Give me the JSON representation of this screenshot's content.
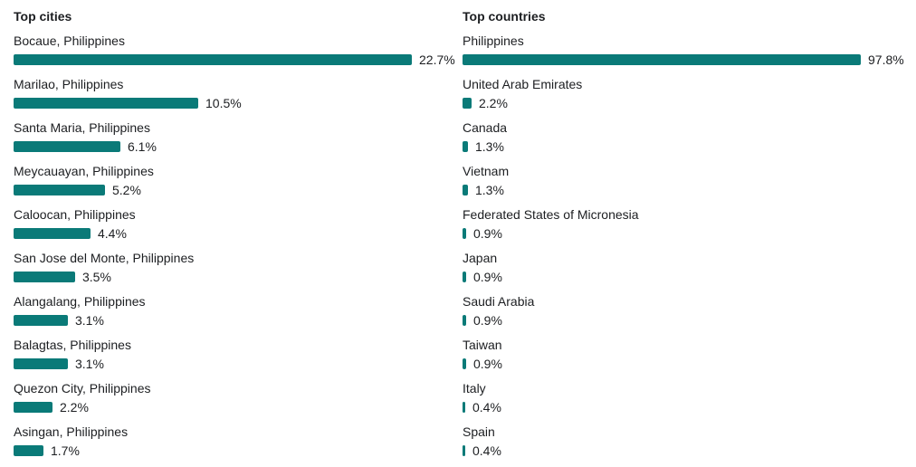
{
  "colors": {
    "bar": "#0a7a78",
    "text": "#1c1e21"
  },
  "chart_data": [
    {
      "type": "bar",
      "orientation": "horizontal",
      "title": "Top cities",
      "unit": "%",
      "categories": [
        "Bocaue, Philippines",
        "Marilao, Philippines",
        "Santa Maria, Philippines",
        "Meycauayan, Philippines",
        "Caloocan, Philippines",
        "San Jose del Monte, Philippines",
        "Alangalang, Philippines",
        "Balagtas, Philippines",
        "Quezon City, Philippines",
        "Asingan, Philippines"
      ],
      "values": [
        22.7,
        10.5,
        6.1,
        5.2,
        4.4,
        3.5,
        3.1,
        3.1,
        2.2,
        1.7
      ],
      "value_labels": [
        "22.7%",
        "10.5%",
        "6.1%",
        "5.2%",
        "4.4%",
        "3.5%",
        "3.1%",
        "3.1%",
        "2.2%",
        "1.7%"
      ],
      "xlim": [
        0,
        22.7
      ],
      "grid": false,
      "legend": "none"
    },
    {
      "type": "bar",
      "orientation": "horizontal",
      "title": "Top countries",
      "unit": "%",
      "categories": [
        "Philippines",
        "United Arab Emirates",
        "Canada",
        "Vietnam",
        "Federated States of Micronesia",
        "Japan",
        "Saudi Arabia",
        "Taiwan",
        "Italy",
        "Spain"
      ],
      "values": [
        97.8,
        2.2,
        1.3,
        1.3,
        0.9,
        0.9,
        0.9,
        0.9,
        0.4,
        0.4
      ],
      "value_labels": [
        "97.8%",
        "2.2%",
        "1.3%",
        "1.3%",
        "0.9%",
        "0.9%",
        "0.9%",
        "0.9%",
        "0.4%",
        "0.4%"
      ],
      "xlim": [
        0,
        97.8
      ],
      "grid": false,
      "legend": "none"
    }
  ]
}
